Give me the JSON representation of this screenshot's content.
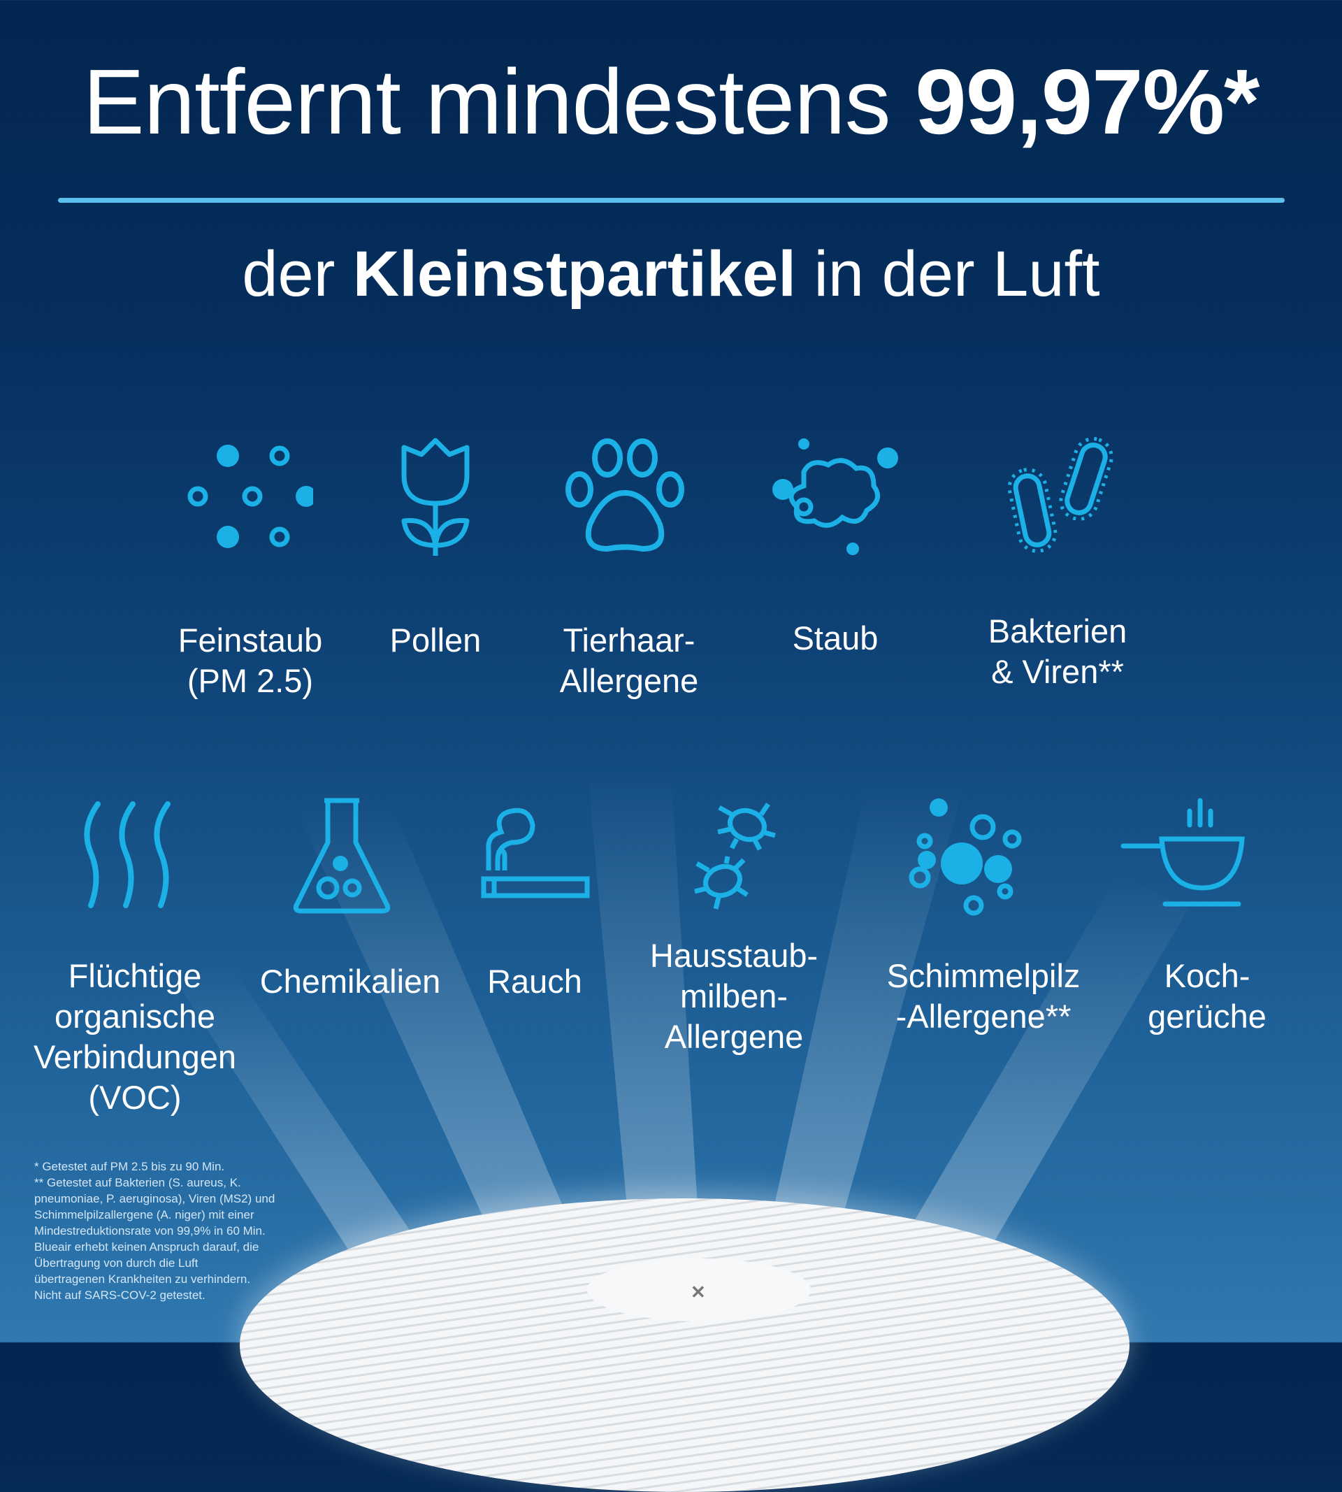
{
  "headline": {
    "prefix": "Entfernt mindestens ",
    "highlight": "99,97%*"
  },
  "subheadline": {
    "prefix": "der ",
    "highlight": "Kleinstpartikel",
    "suffix": " in der Luft"
  },
  "accent_color": "#1bb0e6",
  "items_row1": [
    {
      "icon": "particles-icon",
      "lines": [
        "Feinstaub",
        "(PM 2.5)"
      ]
    },
    {
      "icon": "tulip-icon",
      "lines": [
        "Pollen"
      ]
    },
    {
      "icon": "paw-icon",
      "lines": [
        "Tierhaar-",
        "Allergene"
      ]
    },
    {
      "icon": "dust-cloud-icon",
      "lines": [
        "Staub"
      ]
    },
    {
      "icon": "bacteria-icon",
      "lines": [
        "Bakterien",
        "& Viren**"
      ]
    }
  ],
  "items_row2": [
    {
      "icon": "voc-waves-icon",
      "lines": [
        "Flüchtige",
        "organische",
        "Verbindungen",
        "(VOC)"
      ]
    },
    {
      "icon": "flask-icon",
      "lines": [
        "Chemikalien"
      ]
    },
    {
      "icon": "cigarette-icon",
      "lines": [
        "Rauch"
      ]
    },
    {
      "icon": "dust-mite-icon",
      "lines": [
        "Hausstaub-",
        "milben-",
        "Allergene"
      ]
    },
    {
      "icon": "mold-spores-icon",
      "lines": [
        "Schimmelpilz",
        "-Allergene**"
      ]
    },
    {
      "icon": "cooking-pot-icon",
      "lines": [
        "Koch-",
        "gerüche"
      ]
    }
  ],
  "footnote": [
    "* Getestet auf PM 2.5 bis zu 90 Min.",
    "** Getestet auf Bakterien (S. aureus, K.",
    "pneumoniae, P. aeruginosa), Viren (MS2) und",
    "Schimmelpilzallergene (A. niger) mit einer",
    "Mindestreduktionsrate von 99,9% in 60 Min.",
    "Blueair erhebt keinen Anspruch darauf, die",
    "Übertragung von durch die Luft",
    "übertragenen Krankheiten zu verhindern.",
    "Nicht auf SARS-COV-2 getestet."
  ]
}
